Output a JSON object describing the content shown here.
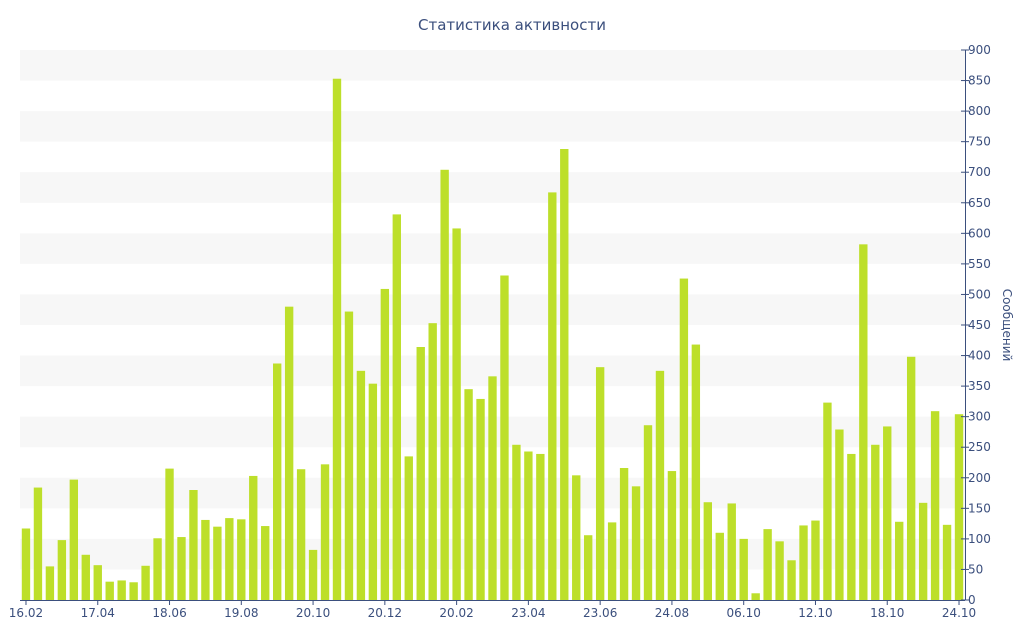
{
  "chart_data": {
    "type": "bar",
    "title": "Статистика активности",
    "xlabel": "",
    "ylabel": "Сообщений",
    "ylim": [
      0,
      900
    ],
    "y_tick_step": 50,
    "grid": "alternating horizontal bands",
    "bar_color": "#bddf2a",
    "band_color": "#f7f7f7",
    "axis_color": "#3b4f7d",
    "x_tick_labels": [
      {
        "label": "16.02",
        "index": 0
      },
      {
        "label": "17.04",
        "index": 6
      },
      {
        "label": "18.06",
        "index": 12
      },
      {
        "label": "19.08",
        "index": 18
      },
      {
        "label": "20.10",
        "index": 24
      },
      {
        "label": "20.12",
        "index": 30
      },
      {
        "label": "20.02",
        "index": 36
      },
      {
        "label": "23.04",
        "index": 42
      },
      {
        "label": "23.06",
        "index": 48
      },
      {
        "label": "24.08",
        "index": 54
      },
      {
        "label": "06.10",
        "index": 60
      },
      {
        "label": "12.10",
        "index": 66
      },
      {
        "label": "18.10",
        "index": 72
      },
      {
        "label": "24.10",
        "index": 78
      }
    ],
    "values": [
      117,
      184,
      55,
      98,
      197,
      74,
      57,
      30,
      32,
      29,
      56,
      101,
      215,
      103,
      180,
      131,
      120,
      134,
      132,
      203,
      121,
      387,
      480,
      214,
      82,
      222,
      853,
      472,
      375,
      354,
      509,
      631,
      235,
      414,
      453,
      704,
      608,
      345,
      329,
      366,
      531,
      254,
      243,
      239,
      667,
      738,
      204,
      106,
      381,
      127,
      216,
      186,
      286,
      375,
      211,
      526,
      418,
      160,
      110,
      158,
      100,
      11,
      116,
      96,
      65,
      122,
      130,
      323,
      279,
      239,
      582,
      254,
      284,
      128,
      398,
      159,
      309,
      123,
      304
    ]
  }
}
